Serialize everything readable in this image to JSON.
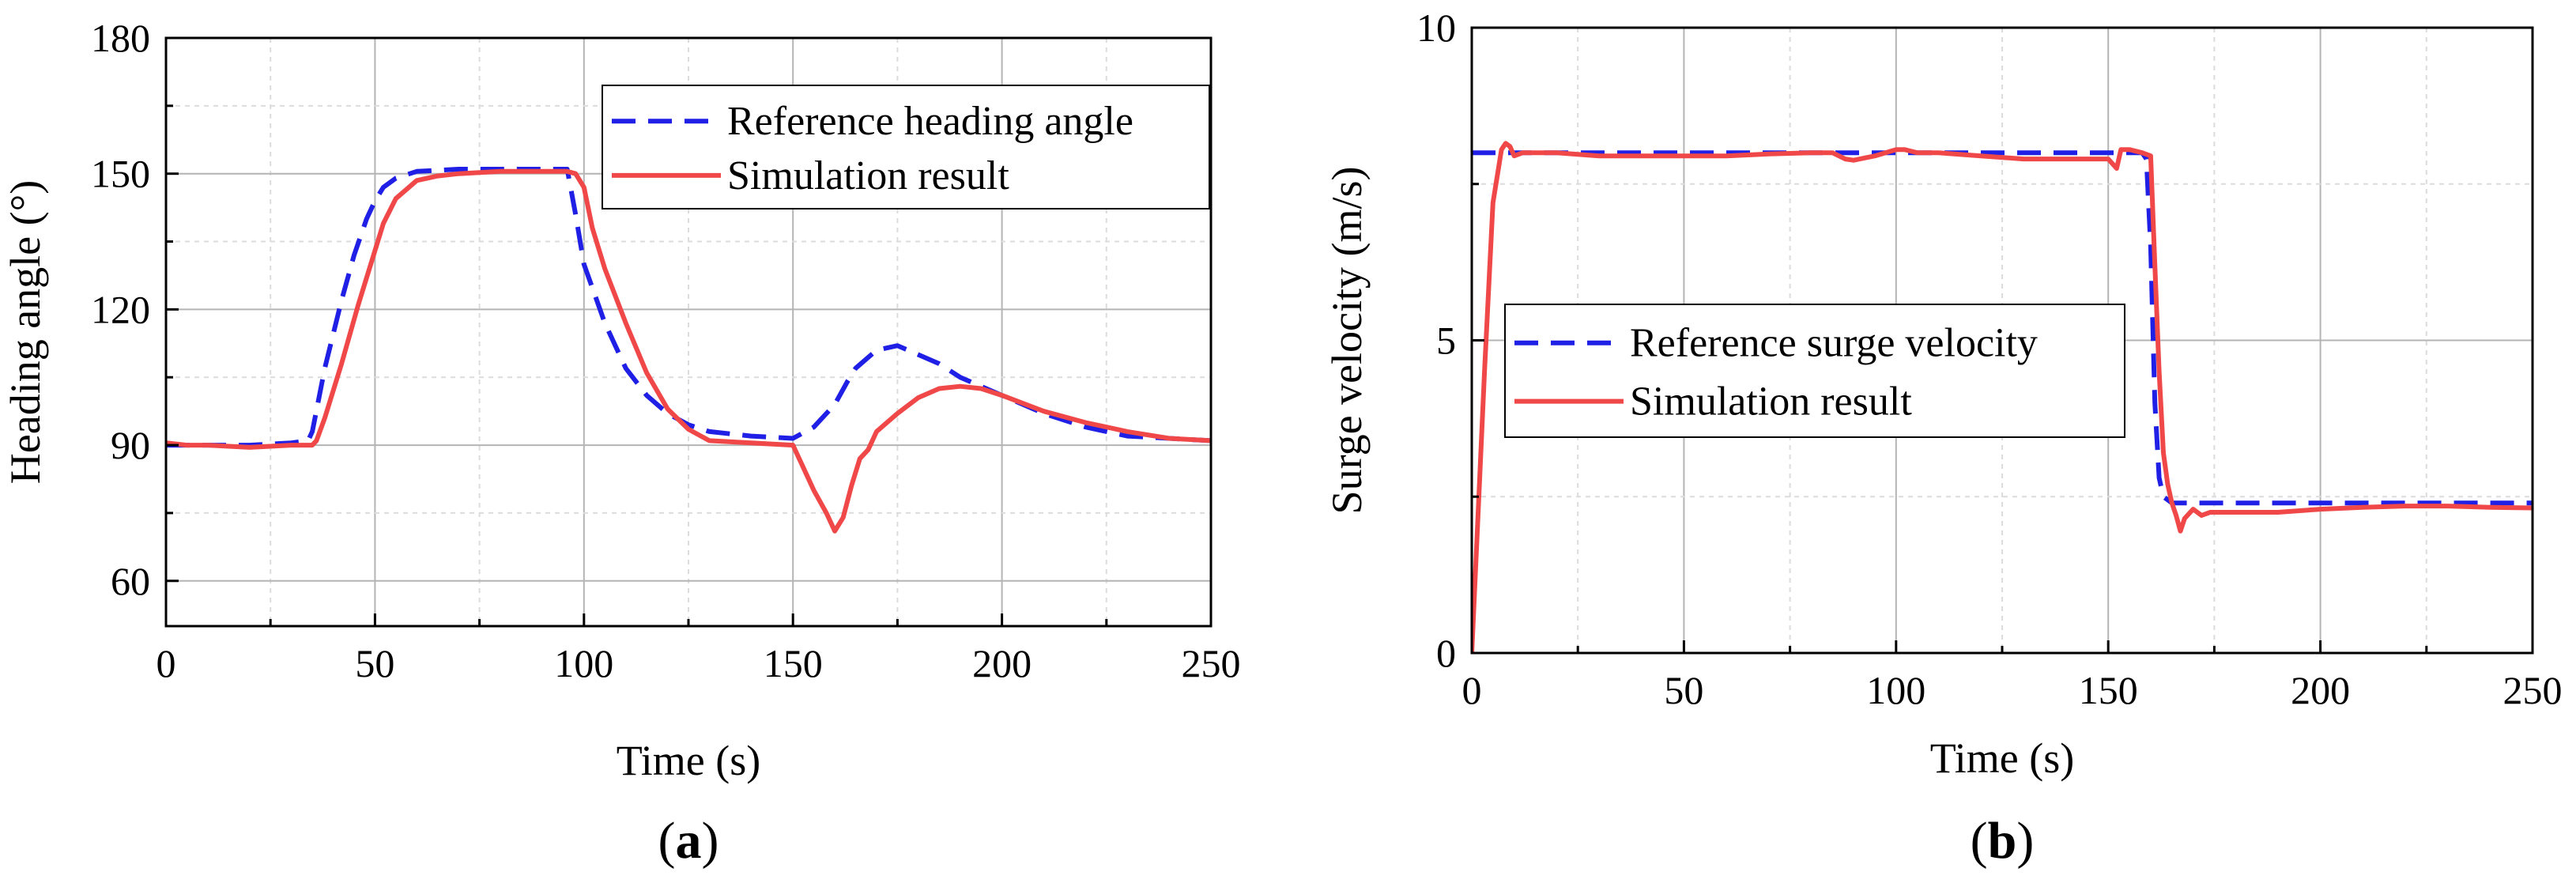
{
  "chart_data": [
    {
      "type": "line",
      "panel_label": {
        "open": "(",
        "letter": "a",
        "close": ")"
      },
      "xlabel": "Time (s)",
      "ylabel": "Heading angle  (°)",
      "xlim": [
        0,
        250
      ],
      "ylim": [
        50,
        180
      ],
      "xticks": [
        0,
        50,
        100,
        150,
        200,
        250
      ],
      "yticks": [
        60,
        90,
        120,
        150,
        180
      ],
      "grid": true,
      "legend_position": "top-right",
      "series": [
        {
          "name": "Reference heading angle",
          "style": "dashed",
          "color": "#1f1fe6",
          "x": [
            0,
            5,
            10,
            20,
            30,
            34,
            35,
            38,
            42,
            45,
            48,
            50,
            52,
            55,
            60,
            70,
            80,
            90,
            96,
            98,
            100,
            105,
            110,
            115,
            120,
            125,
            130,
            140,
            150,
            155,
            160,
            163,
            165,
            170,
            175,
            180,
            185,
            190,
            200,
            210,
            220,
            230,
            240,
            250
          ],
          "y": [
            90,
            90,
            90,
            90,
            90.5,
            91,
            93,
            107,
            122,
            132,
            140,
            144,
            147,
            149,
            150.5,
            151,
            151,
            151,
            151,
            141,
            130,
            117,
            107,
            101,
            97,
            94.5,
            93,
            92,
            91.5,
            94,
            99,
            104,
            107,
            111,
            112,
            110,
            108,
            105,
            101,
            97,
            94,
            92,
            91.5,
            91
          ]
        },
        {
          "name": "Simulation result",
          "style": "solid",
          "color": "#f04848",
          "x": [
            0,
            5,
            10,
            20,
            30,
            35,
            36,
            38,
            42,
            46,
            50,
            52,
            55,
            60,
            65,
            70,
            80,
            90,
            96,
            98,
            100,
            102,
            105,
            110,
            115,
            120,
            125,
            130,
            140,
            150,
            152,
            155,
            158,
            160,
            162,
            164,
            166,
            168,
            170,
            175,
            180,
            185,
            190,
            195,
            200,
            210,
            220,
            230,
            240,
            250
          ],
          "y": [
            90.5,
            90,
            90,
            89.5,
            90,
            90,
            91,
            96,
            108,
            121,
            133,
            139,
            144.5,
            148.5,
            149.5,
            150,
            150.5,
            150.5,
            150.5,
            150,
            147,
            138,
            129,
            117,
            106,
            98,
            93.5,
            91,
            90.5,
            90,
            86,
            80,
            75,
            71,
            74,
            81,
            87,
            89,
            93,
            97,
            100.5,
            102.5,
            103,
            102.5,
            101,
            97.5,
            95,
            93,
            91.5,
            91
          ]
        }
      ]
    },
    {
      "type": "line",
      "panel_label": {
        "open": "(",
        "letter": "b",
        "close": ")"
      },
      "xlabel": "Time  (s)",
      "ylabel": "Surge velocity (m/s)",
      "xlim": [
        0,
        250
      ],
      "ylim": [
        0,
        10
      ],
      "xticks": [
        0,
        50,
        100,
        150,
        200,
        250
      ],
      "yticks": [
        0,
        5,
        10
      ],
      "grid": true,
      "legend_position": "center-left",
      "series": [
        {
          "name": "Reference surge velocity",
          "style": "dashed",
          "color": "#1f1fe6",
          "x": [
            0,
            50,
            100,
            150,
            158,
            159,
            160,
            161,
            162,
            163,
            165,
            170,
            200,
            250
          ],
          "y": [
            8,
            8,
            8,
            8,
            8,
            7.9,
            6.5,
            4.0,
            2.8,
            2.5,
            2.4,
            2.4,
            2.4,
            2.4
          ]
        },
        {
          "name": "Simulation result",
          "style": "solid",
          "color": "#f04848",
          "x": [
            0,
            1,
            3,
            5,
            7,
            8,
            9,
            10,
            12,
            15,
            20,
            30,
            40,
            50,
            60,
            70,
            80,
            85,
            88,
            90,
            95,
            100,
            102,
            105,
            110,
            120,
            130,
            140,
            150,
            152,
            153,
            155,
            158,
            160,
            161,
            162,
            163,
            164,
            165,
            166,
            167,
            168,
            170,
            172,
            174,
            176,
            180,
            190,
            200,
            210,
            220,
            230,
            240,
            250
          ],
          "y": [
            0,
            1.5,
            4.5,
            7.2,
            8.05,
            8.15,
            8.1,
            7.95,
            8.0,
            8.0,
            8.0,
            7.95,
            7.95,
            7.95,
            7.95,
            7.98,
            8.0,
            8.0,
            7.9,
            7.88,
            7.95,
            8.05,
            8.05,
            8.0,
            8.0,
            7.95,
            7.9,
            7.9,
            7.9,
            7.75,
            8.05,
            8.05,
            8.0,
            7.95,
            6.2,
            4.5,
            3.2,
            2.7,
            2.4,
            2.2,
            1.95,
            2.15,
            2.3,
            2.2,
            2.25,
            2.25,
            2.25,
            2.25,
            2.3,
            2.33,
            2.35,
            2.35,
            2.33,
            2.32
          ]
        }
      ]
    }
  ]
}
